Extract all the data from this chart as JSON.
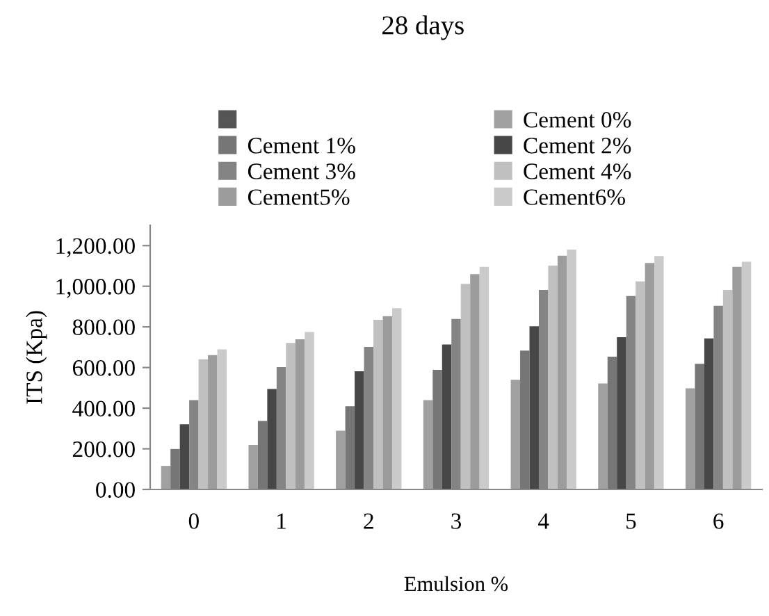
{
  "chart_data": {
    "type": "bar",
    "title": "28 days",
    "xlabel": "Emulsion %",
    "ylabel": "ITS (Kpa)",
    "categories": [
      "0",
      "1",
      "2",
      "3",
      "4",
      "5",
      "6"
    ],
    "series": [
      {
        "color": "#555555",
        "values": [
          null,
          null,
          null,
          null,
          null,
          null,
          null
        ]
      },
      {
        "name": "Cement 0%",
        "color": "#a0a0a0",
        "values": [
          116,
          219,
          289,
          440,
          540,
          522,
          498
        ]
      },
      {
        "name": "Cement 1%",
        "color": "#767676",
        "values": [
          199,
          337,
          410,
          588,
          683,
          653,
          618
        ]
      },
      {
        "name": "Cement 2%",
        "color": "#474747",
        "values": [
          321,
          494,
          582,
          713,
          803,
          749,
          743
        ]
      },
      {
        "name": "Cement 3%",
        "color": "#848484",
        "values": [
          440,
          602,
          701,
          839,
          982,
          952,
          904
        ]
      },
      {
        "name": "Cement 4%",
        "color": "#c0c0c0",
        "values": [
          641,
          721,
          835,
          1012,
          1102,
          1024,
          982
        ]
      },
      {
        "name": "Cement5%",
        "color": "#9c9c9c",
        "values": [
          661,
          739,
          853,
          1060,
          1150,
          1114,
          1096
        ]
      },
      {
        "name": "Cement6%",
        "color": "#cacaca",
        "values": [
          689,
          775,
          892,
          1096,
          1180,
          1149,
          1120
        ]
      }
    ],
    "ylim": [
      0,
      1300
    ],
    "yticks": [
      {
        "value": 0,
        "label": "0.00"
      },
      {
        "value": 200,
        "label": "200.00"
      },
      {
        "value": 400,
        "label": "400.00"
      },
      {
        "value": 600,
        "label": "600.00"
      },
      {
        "value": 800,
        "label": "800.00"
      },
      {
        "value": 1000,
        "label": "1,000.00"
      },
      {
        "value": 1200,
        "label": "1,200.00"
      }
    ],
    "grid": false,
    "legend": "top"
  }
}
